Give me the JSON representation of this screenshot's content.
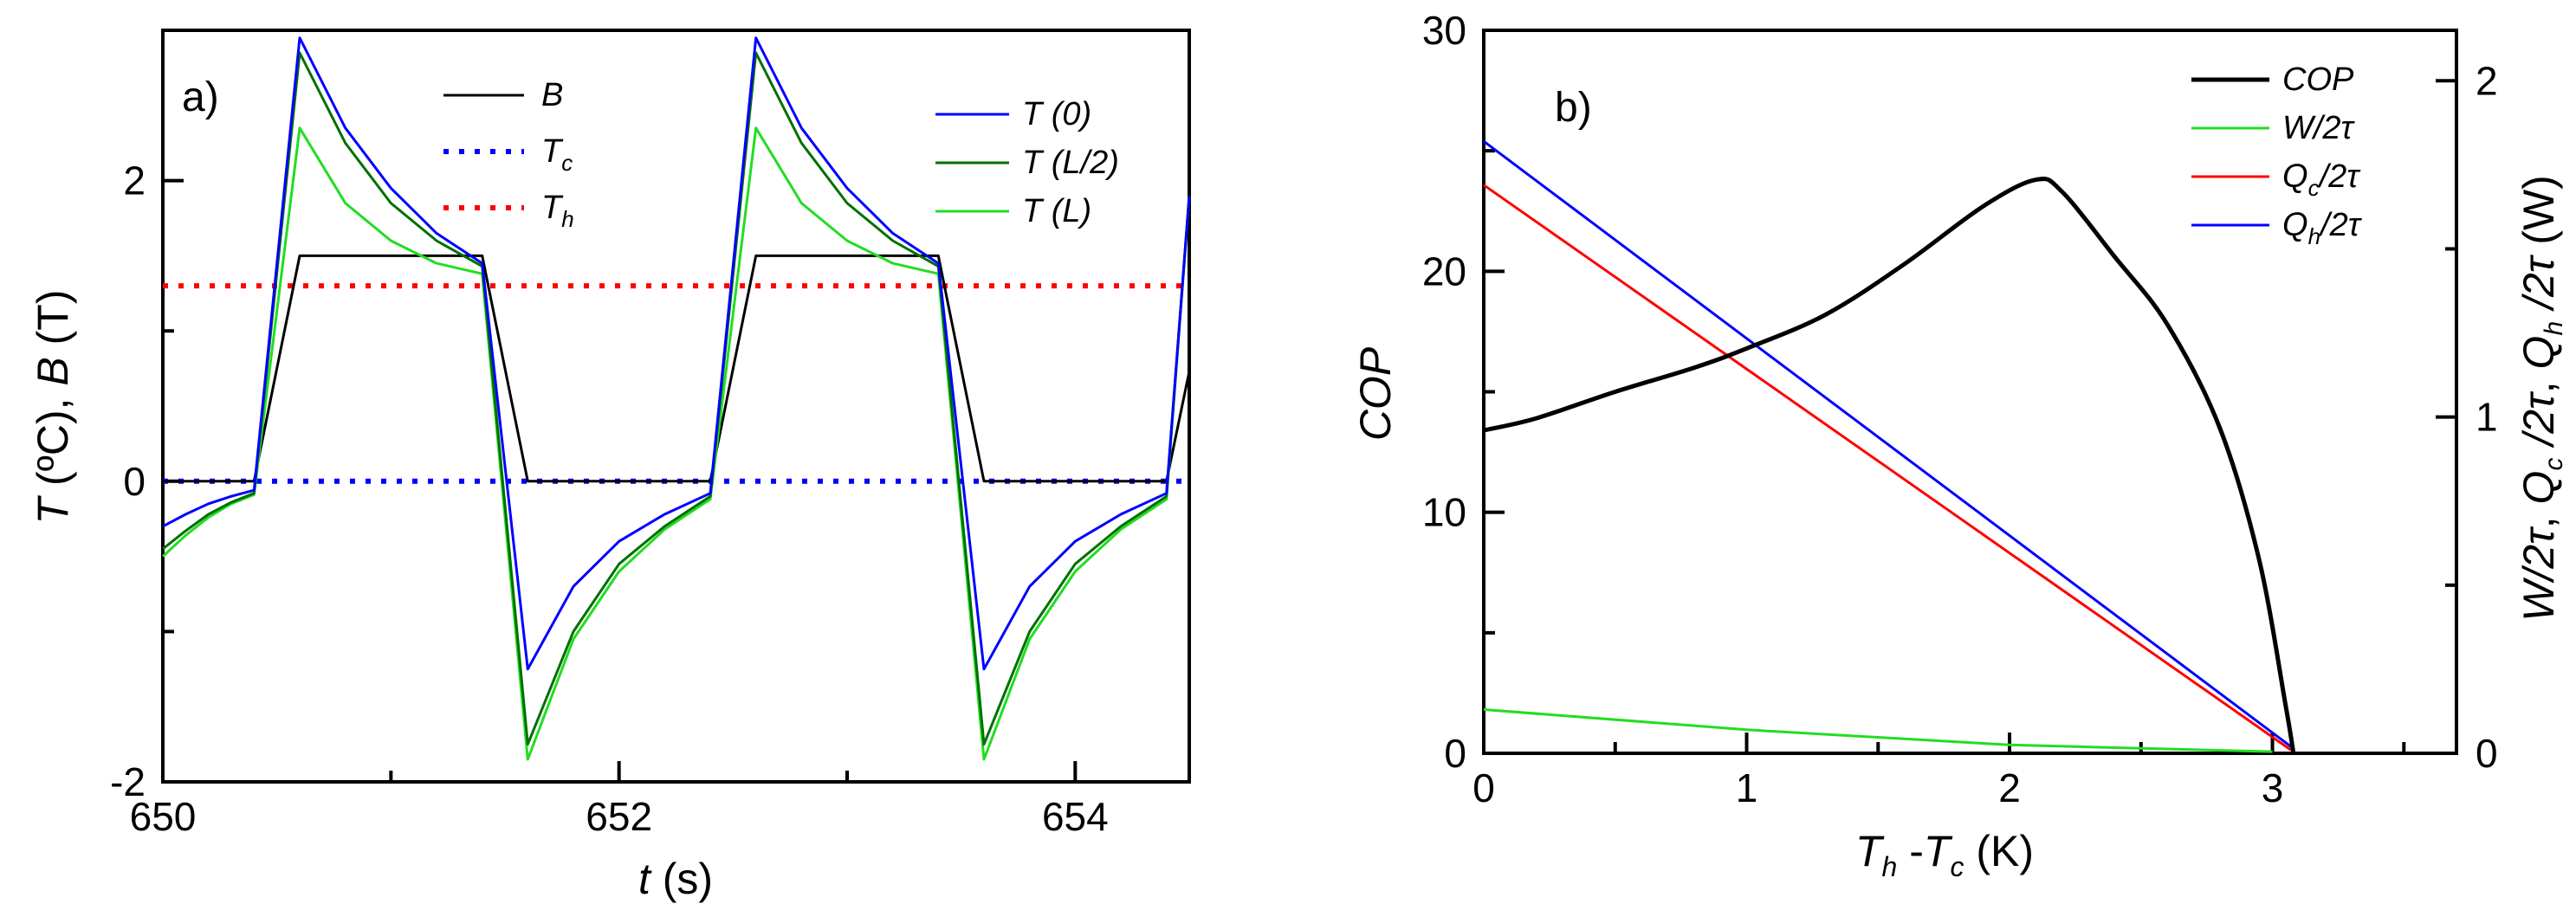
{
  "chart_data": [
    {
      "panel": "a)",
      "type": "line",
      "xlabel_var": "t",
      "xlabel_unit": " (s)",
      "ylabel_parts": [
        "T",
        " (ºC), ",
        "B",
        " (T)"
      ],
      "xlim": [
        650,
        654.5
      ],
      "ylim": [
        -2,
        3
      ],
      "x_ticks": [
        "650",
        "652",
        "654"
      ],
      "y_ticks": [
        "-2",
        "0",
        "2"
      ],
      "series": [
        {
          "name": "B",
          "sub": "",
          "style": "solid",
          "color": "#000000",
          "x": [
            650,
            650.4,
            650.6,
            651.4,
            651.6,
            652.4,
            652.6,
            653.4,
            653.6,
            654.4,
            654.5
          ],
          "y": [
            0,
            0,
            1.5,
            1.5,
            0,
            0,
            1.5,
            1.5,
            0,
            0,
            0.73
          ]
        },
        {
          "name": "T",
          "sub": "c",
          "style": "dotted",
          "color": "#0000ff",
          "x": [
            650,
            654.5
          ],
          "y": [
            0,
            0
          ]
        },
        {
          "name": "T",
          "sub": "h",
          "style": "dotted",
          "color": "#ff0000",
          "x": [
            650,
            654.5
          ],
          "y": [
            1.3,
            1.3
          ]
        },
        {
          "name": "T (0)",
          "style": "solid",
          "color": "#0000ff",
          "x": [
            650,
            650.1,
            650.2,
            650.3,
            650.4,
            650.6,
            650.8,
            651.0,
            651.2,
            651.4,
            651.6,
            651.8,
            652.0,
            652.2,
            652.4,
            652.6,
            652.8,
            653.0,
            653.2,
            653.4,
            653.6,
            653.8,
            654.0,
            654.2,
            654.4,
            654.5
          ],
          "y": [
            -0.3,
            -0.22,
            -0.15,
            -0.1,
            -0.06,
            2.95,
            2.35,
            1.95,
            1.65,
            1.45,
            -1.25,
            -0.7,
            -0.4,
            -0.22,
            -0.08,
            2.95,
            2.35,
            1.95,
            1.65,
            1.45,
            -1.25,
            -0.7,
            -0.4,
            -0.22,
            -0.08,
            1.9
          ]
        },
        {
          "name": "T (L/2)",
          "style": "solid",
          "color": "#007000",
          "x": [
            650,
            650.1,
            650.2,
            650.3,
            650.4,
            650.6,
            650.8,
            651.0,
            651.2,
            651.4,
            651.6,
            651.8,
            652.0,
            652.2,
            652.4,
            652.6,
            652.8,
            653.0,
            653.2,
            653.4,
            653.6,
            653.8,
            654.0,
            654.2,
            654.4,
            654.5
          ],
          "y": [
            -0.45,
            -0.33,
            -0.22,
            -0.14,
            -0.08,
            2.85,
            2.25,
            1.85,
            1.6,
            1.43,
            -1.75,
            -1.0,
            -0.55,
            -0.3,
            -0.1,
            2.85,
            2.25,
            1.85,
            1.6,
            1.43,
            -1.75,
            -1.0,
            -0.55,
            -0.3,
            -0.1,
            1.9
          ]
        },
        {
          "name": "T (L)",
          "style": "solid",
          "color": "#22dd22",
          "x": [
            650,
            650.1,
            650.2,
            650.3,
            650.4,
            650.6,
            650.8,
            651.0,
            651.2,
            651.4,
            651.6,
            651.8,
            652.0,
            652.2,
            652.4,
            652.6,
            652.8,
            653.0,
            653.2,
            653.4,
            653.6,
            653.8,
            654.0,
            654.2,
            654.4,
            654.5
          ],
          "y": [
            -0.5,
            -0.36,
            -0.24,
            -0.15,
            -0.09,
            2.35,
            1.85,
            1.6,
            1.45,
            1.38,
            -1.85,
            -1.05,
            -0.6,
            -0.32,
            -0.12,
            2.35,
            1.85,
            1.6,
            1.45,
            1.38,
            -1.85,
            -1.05,
            -0.6,
            -0.32,
            -0.12,
            1.9
          ]
        }
      ]
    },
    {
      "panel": "b)",
      "type": "line",
      "xlabel_parts": [
        "T",
        "h",
        " -",
        "T",
        "c",
        " (K)"
      ],
      "ylabel_left": "COP",
      "ylabel_right_parts": [
        "W/2",
        "τ",
        ", ",
        "Q",
        "c",
        " /2",
        "τ",
        ", ",
        "Q",
        "h",
        " /2",
        "τ",
        " (W)"
      ],
      "xlim": [
        0,
        3.7
      ],
      "ylim_left": [
        0,
        30
      ],
      "ylim_right": [
        0,
        2.15
      ],
      "x_ticks": [
        "0",
        "1",
        "2",
        "3"
      ],
      "y_ticks_left": [
        "0",
        "10",
        "20",
        "30"
      ],
      "y_ticks_right": [
        "0",
        "1",
        "2"
      ],
      "series": [
        {
          "name": "COP",
          "axis": "left",
          "color": "#000000",
          "x": [
            0,
            0.2,
            0.5,
            0.8,
            1.0,
            1.3,
            1.6,
            1.9,
            2.1,
            2.2,
            2.4,
            2.6,
            2.8,
            2.95,
            3.05,
            3.08
          ],
          "y": [
            13.4,
            13.9,
            15.0,
            16.0,
            16.8,
            18.2,
            20.3,
            22.7,
            23.8,
            23.3,
            20.6,
            17.8,
            13.5,
            8.0,
            2.0,
            0
          ]
        },
        {
          "name": "W/2τ",
          "axis": "right",
          "color": "#22dd22",
          "x": [
            0,
            1.0,
            2.0,
            3.0
          ],
          "y": [
            0.13,
            0.07,
            0.025,
            0.005
          ]
        },
        {
          "name": "Qc/2τ",
          "axis": "right",
          "color": "#ff0000",
          "x": [
            0,
            3.07
          ],
          "y": [
            1.69,
            0.01
          ]
        },
        {
          "name": "Qh/2τ",
          "axis": "right",
          "color": "#0000ff",
          "x": [
            0,
            3.07
          ],
          "y": [
            1.82,
            0.02
          ]
        }
      ],
      "legend": [
        {
          "main": "COP",
          "sub": "",
          "tail": "",
          "color": "#000000"
        },
        {
          "main": "W/2τ",
          "sub": "",
          "tail": "",
          "color": "#22dd22"
        },
        {
          "main": "Q",
          "sub": "c",
          "tail": "/2τ",
          "color": "#ff0000"
        },
        {
          "main": "Q",
          "sub": "h",
          "tail": "/2τ",
          "color": "#0000ff"
        }
      ]
    }
  ]
}
